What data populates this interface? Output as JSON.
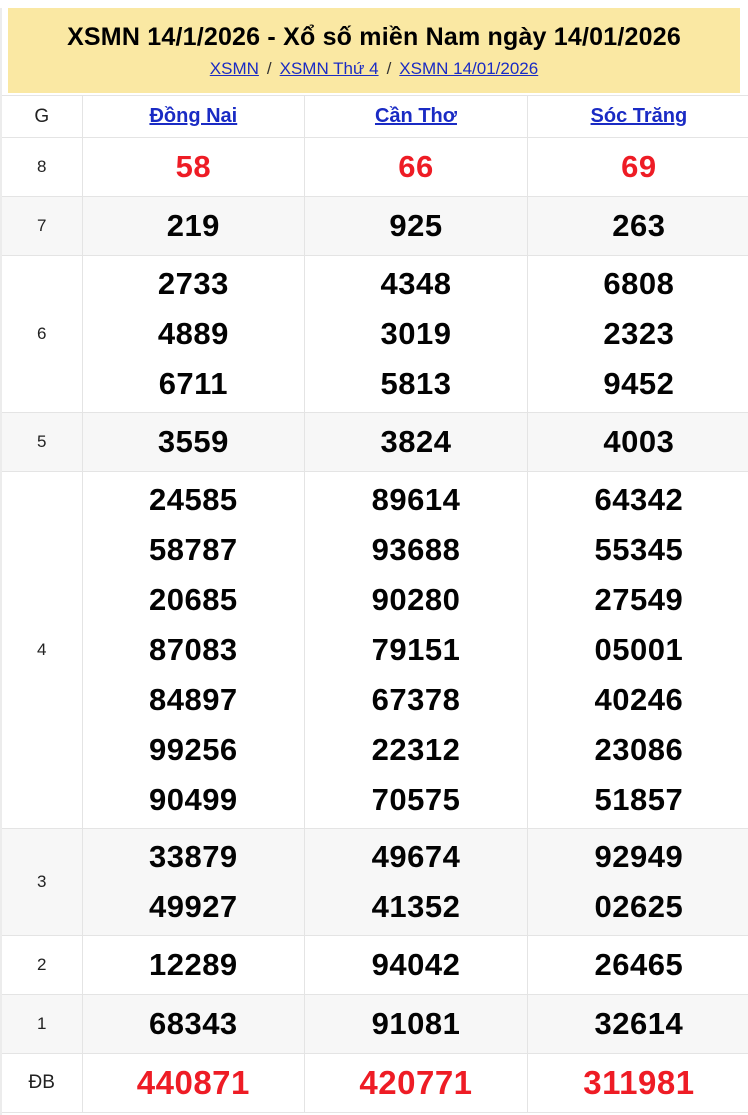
{
  "header": {
    "title": "XSMN 14/1/2026 - Xổ số miền Nam ngày 14/01/2026",
    "separator": "/",
    "breadcrumb": [
      {
        "label": "XSMN"
      },
      {
        "label": "XSMN Thứ 4"
      },
      {
        "label": "XSMN 14/01/2026"
      }
    ]
  },
  "table": {
    "corner_label": "G",
    "columns": [
      "Đồng Nai",
      "Cần Thơ",
      "Sóc Trăng"
    ],
    "rows": [
      {
        "label": "8",
        "color": "red",
        "cells": [
          [
            "58"
          ],
          [
            "66"
          ],
          [
            "69"
          ]
        ]
      },
      {
        "label": "7",
        "color": "black",
        "cells": [
          [
            "219"
          ],
          [
            "925"
          ],
          [
            "263"
          ]
        ]
      },
      {
        "label": "6",
        "color": "black",
        "cells": [
          [
            "2733",
            "4889",
            "6711"
          ],
          [
            "4348",
            "3019",
            "5813"
          ],
          [
            "6808",
            "2323",
            "9452"
          ]
        ]
      },
      {
        "label": "5",
        "color": "black",
        "cells": [
          [
            "3559"
          ],
          [
            "3824"
          ],
          [
            "4003"
          ]
        ]
      },
      {
        "label": "4",
        "color": "black",
        "cells": [
          [
            "24585",
            "58787",
            "20685",
            "87083",
            "84897",
            "99256",
            "90499"
          ],
          [
            "89614",
            "93688",
            "90280",
            "79151",
            "67378",
            "22312",
            "70575"
          ],
          [
            "64342",
            "55345",
            "27549",
            "05001",
            "40246",
            "23086",
            "51857"
          ]
        ]
      },
      {
        "label": "3",
        "color": "black",
        "cells": [
          [
            "33879",
            "49927"
          ],
          [
            "49674",
            "41352"
          ],
          [
            "92949",
            "02625"
          ]
        ]
      },
      {
        "label": "2",
        "color": "black",
        "cells": [
          [
            "12289"
          ],
          [
            "94042"
          ],
          [
            "26465"
          ]
        ]
      },
      {
        "label": "1",
        "color": "black",
        "cells": [
          [
            "68343"
          ],
          [
            "91081"
          ],
          [
            "32614"
          ]
        ]
      },
      {
        "label": "ĐB",
        "color": "red",
        "large": true,
        "cells": [
          [
            "440871"
          ],
          [
            "420771"
          ],
          [
            "311981"
          ]
        ]
      }
    ]
  },
  "footer_strip": {
    "cell_count": 12,
    "active_index": 0
  },
  "colors": {
    "banner_bg": "#fae8a3",
    "link_blue": "#1a2bc4",
    "number_red": "#ee1c25",
    "strip_red": "#c01212",
    "row_alt": "#f7f7f7"
  }
}
